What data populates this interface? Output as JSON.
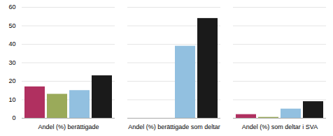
{
  "chart_data": {
    "type": "bar",
    "categories": [
      "Andel (%) berättigade",
      "Andel (%) berättigade som deltar",
      "Andel (%) som deltar i SVA"
    ],
    "series": [
      {
        "color": "#b03060",
        "values": [
          17,
          null,
          2
        ]
      },
      {
        "color": "#9aaa5a",
        "values": [
          13,
          null,
          0.5
        ]
      },
      {
        "color": "#92c0e0",
        "values": [
          15,
          39,
          5
        ]
      },
      {
        "color": "#1a1a1a",
        "values": [
          23,
          54,
          9
        ]
      }
    ],
    "ylim": [
      0,
      60
    ],
    "yticks": [
      0,
      10,
      20,
      30,
      40,
      50,
      60
    ],
    "grid": true
  }
}
